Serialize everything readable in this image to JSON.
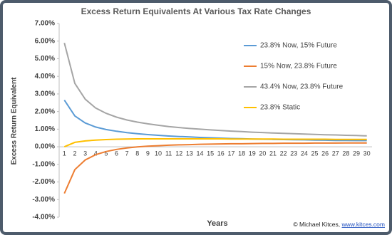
{
  "chart_data": {
    "type": "line",
    "title": "Excess Return Equivalents At Various Tax Rate Changes",
    "x_label": "Years",
    "y_label": "Excess Return Equivalent",
    "credit": "© Michael Kitces,",
    "credit_link": "www.kitces.com",
    "categories": [
      "1",
      "2",
      "3",
      "4",
      "5",
      "6",
      "7",
      "8",
      "9",
      "10",
      "11",
      "12",
      "13",
      "14",
      "15",
      "16",
      "17",
      "18",
      "19",
      "20",
      "21",
      "22",
      "23",
      "24",
      "25",
      "26",
      "27",
      "28",
      "29",
      "30"
    ],
    "ylim": [
      -4,
      7
    ],
    "yticks": [
      {
        "value": 7,
        "label": "7.00%"
      },
      {
        "value": 6,
        "label": "6.00%"
      },
      {
        "value": 5,
        "label": "5.00%"
      },
      {
        "value": 4,
        "label": "4.00%"
      },
      {
        "value": 3,
        "label": "3.00%"
      },
      {
        "value": 2,
        "label": "2.00%"
      },
      {
        "value": 1,
        "label": "1.00%"
      },
      {
        "value": 0,
        "label": "0.00%"
      },
      {
        "value": -1,
        "label": "-1.00%"
      },
      {
        "value": -2,
        "label": "-2.00%"
      },
      {
        "value": -3,
        "label": "-3.00%"
      },
      {
        "value": -4,
        "label": "-4.00%"
      }
    ],
    "grid": false,
    "legend": "upper right",
    "series": [
      {
        "name": "23.8% Now, 15% Future",
        "color": "#5b9bd5",
        "values": [
          2.65,
          1.75,
          1.35,
          1.12,
          0.98,
          0.88,
          0.8,
          0.74,
          0.69,
          0.65,
          0.61,
          0.58,
          0.56,
          0.53,
          0.51,
          0.49,
          0.47,
          0.46,
          0.44,
          0.43,
          0.42,
          0.41,
          0.4,
          0.39,
          0.38,
          0.37,
          0.36,
          0.36,
          0.35,
          0.35
        ]
      },
      {
        "name": "15% Now, 23.8% Future",
        "color": "#ed7d31",
        "values": [
          -2.65,
          -1.3,
          -0.75,
          -0.45,
          -0.27,
          -0.15,
          -0.07,
          -0.01,
          0.03,
          0.06,
          0.09,
          0.11,
          0.12,
          0.14,
          0.15,
          0.16,
          0.17,
          0.17,
          0.18,
          0.19,
          0.19,
          0.2,
          0.2,
          0.2,
          0.21,
          0.21,
          0.21,
          0.22,
          0.22,
          0.22
        ]
      },
      {
        "name": "43.4% Now, 23.8% Future",
        "color": "#a5a5a5",
        "values": [
          5.9,
          3.6,
          2.7,
          2.2,
          1.9,
          1.68,
          1.52,
          1.4,
          1.3,
          1.22,
          1.15,
          1.09,
          1.04,
          1.0,
          0.96,
          0.92,
          0.89,
          0.86,
          0.83,
          0.81,
          0.78,
          0.76,
          0.74,
          0.72,
          0.7,
          0.68,
          0.67,
          0.65,
          0.64,
          0.62
        ]
      },
      {
        "name": "23.8% Static",
        "color": "#ffc000",
        "values": [
          0.0,
          0.25,
          0.33,
          0.38,
          0.41,
          0.43,
          0.44,
          0.45,
          0.45,
          0.45,
          0.45,
          0.45,
          0.45,
          0.45,
          0.45,
          0.45,
          0.44,
          0.44,
          0.44,
          0.44,
          0.44,
          0.43,
          0.43,
          0.43,
          0.43,
          0.43,
          0.42,
          0.42,
          0.42,
          0.42
        ]
      }
    ]
  }
}
